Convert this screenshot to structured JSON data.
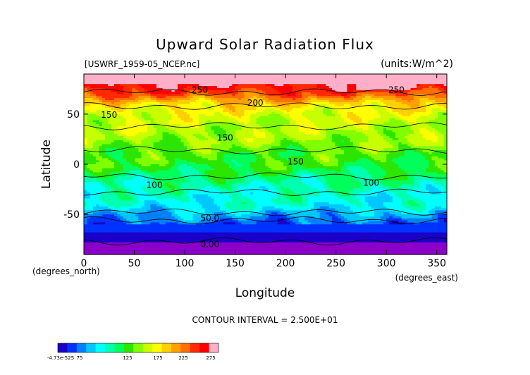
{
  "chart_data": {
    "type": "heatmap",
    "title": "Upward Solar Radiation Flux",
    "file_label": "[USWRF_1959-05_NCEP.nc]",
    "units_label": "(units:W/m^2)",
    "xlabel": "Longitude",
    "ylabel": "Latitude",
    "x_unit_label": "(degrees_east)",
    "y_unit_label": "(degrees_north)",
    "xlim": [
      0,
      360
    ],
    "ylim": [
      -90,
      90
    ],
    "x_ticks": [
      0,
      50,
      100,
      150,
      200,
      250,
      300,
      350
    ],
    "y_ticks": [
      -50,
      0,
      50
    ],
    "contour_interval_text": "CONTOUR INTERVAL = 2.500E+01",
    "contour_labels": [
      {
        "text": "250",
        "lon": 115,
        "lat": 75
      },
      {
        "text": "250",
        "lon": 310,
        "lat": 75
      },
      {
        "text": "200",
        "lon": 170,
        "lat": 62
      },
      {
        "text": "150",
        "lon": 25,
        "lat": 50
      },
      {
        "text": "150",
        "lon": 140,
        "lat": 27
      },
      {
        "text": "150",
        "lon": 210,
        "lat": 3
      },
      {
        "text": "100",
        "lon": 70,
        "lat": -20
      },
      {
        "text": "100",
        "lon": 285,
        "lat": -18
      },
      {
        "text": "50.0",
        "lon": 125,
        "lat": -53
      },
      {
        "text": "0.00",
        "lon": 125,
        "lat": -79
      }
    ],
    "latitude_profile": [
      {
        "lat": 90,
        "value": 290
      },
      {
        "lat": 80,
        "value": 270
      },
      {
        "lat": 70,
        "value": 240
      },
      {
        "lat": 60,
        "value": 190
      },
      {
        "lat": 50,
        "value": 170
      },
      {
        "lat": 40,
        "value": 160
      },
      {
        "lat": 30,
        "value": 155
      },
      {
        "lat": 20,
        "value": 145
      },
      {
        "lat": 10,
        "value": 130
      },
      {
        "lat": 0,
        "value": 125
      },
      {
        "lat": -10,
        "value": 110
      },
      {
        "lat": -20,
        "value": 95
      },
      {
        "lat": -30,
        "value": 85
      },
      {
        "lat": -40,
        "value": 80
      },
      {
        "lat": -50,
        "value": 55
      },
      {
        "lat": -60,
        "value": 30
      },
      {
        "lat": -70,
        "value": 15
      },
      {
        "lat": -78,
        "value": 0
      },
      {
        "lat": -90,
        "value": 0
      }
    ],
    "colorbar": {
      "levels": [
        "-4.73e-525",
        "75",
        "125",
        "175",
        "225",
        "275"
      ],
      "colors": [
        "#1a00c8",
        "#0033ff",
        "#0080ff",
        "#00c8ff",
        "#00ffff",
        "#00ffb0",
        "#00ff5a",
        "#2ce600",
        "#80ff00",
        "#c8ff00",
        "#ffff00",
        "#ffd000",
        "#ffa000",
        "#ff6e00",
        "#ff2a00",
        "#ff0000",
        "#ffb0c8"
      ]
    }
  }
}
